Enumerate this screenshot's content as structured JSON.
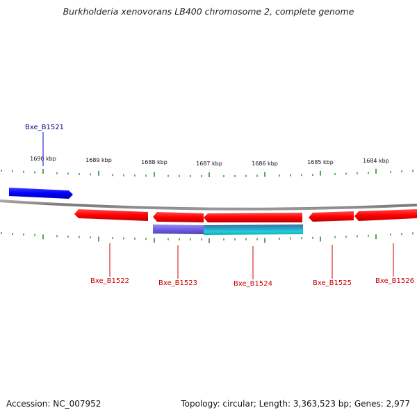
{
  "title": "Burkholderia xenovorans LB400 chromosome 2, complete genome",
  "footer": {
    "accession": "Accession: NC_007952",
    "summary": "Topology: circular; Length: 3,363,523 bp; Genes: 2,977"
  },
  "ruler": {
    "tick_labels": [
      "1690 kbp",
      "1689 kbp",
      "1688 kbp",
      "1687 kbp",
      "1686 kbp",
      "1685 kbp",
      "1684 kbp"
    ],
    "tick_color": "#2e8b2e"
  },
  "genes": [
    {
      "id": "Bxe_B1521",
      "strand": "forward",
      "color": "#0000ff"
    },
    {
      "id": "Bxe_B1522",
      "strand": "reverse",
      "color": "#ff0000"
    },
    {
      "id": "Bxe_B1523",
      "strand": "reverse",
      "color": "#ff0000"
    },
    {
      "id": "Bxe_B1524",
      "strand": "reverse",
      "color": "#ff0000"
    },
    {
      "id": "Bxe_B1525",
      "strand": "reverse",
      "color": "#ff0000"
    },
    {
      "id": "Bxe_B1526",
      "strand": "reverse",
      "color": "#ff0000"
    }
  ],
  "features": [
    {
      "name": "purple-feature",
      "color": "#7b68ee"
    },
    {
      "name": "cyan-feature",
      "color": "#20c0c8"
    }
  ],
  "backbone_color": "#888888"
}
